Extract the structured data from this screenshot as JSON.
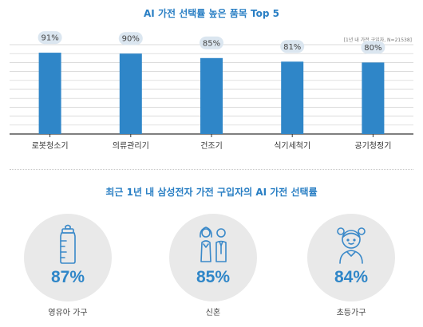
{
  "title": "AI 가전 선택률 높은 품목 Top 5",
  "note": "[1년 내 가전 구입자, N=21538]",
  "chart_data": {
    "type": "bar",
    "categories": [
      "로봇청소기",
      "의류관리기",
      "건조기",
      "식기세척기",
      "공기청정기"
    ],
    "values": [
      91,
      90,
      85,
      81,
      80
    ],
    "value_labels": [
      "91%",
      "90%",
      "85%",
      "81%",
      "80%"
    ],
    "ylim": [
      0,
      100
    ],
    "grid": true,
    "bar_color": "#2f86c8"
  },
  "section2": {
    "title": "최근 1년 내 삼성전자 가전 구입자의 AI 가전 선택률",
    "stats": [
      {
        "icon": "baby-bottle-icon",
        "value": "87%",
        "label": "영유아 가구"
      },
      {
        "icon": "newlywed-couple-icon",
        "value": "85%",
        "label": "신혼"
      },
      {
        "icon": "child-icon",
        "value": "84%",
        "label": "초등가구"
      }
    ]
  },
  "colors": {
    "accent": "#2a7fc4",
    "bar": "#2f86c8",
    "pill": "#dbe6f0",
    "circle": "#e9e9e9"
  }
}
